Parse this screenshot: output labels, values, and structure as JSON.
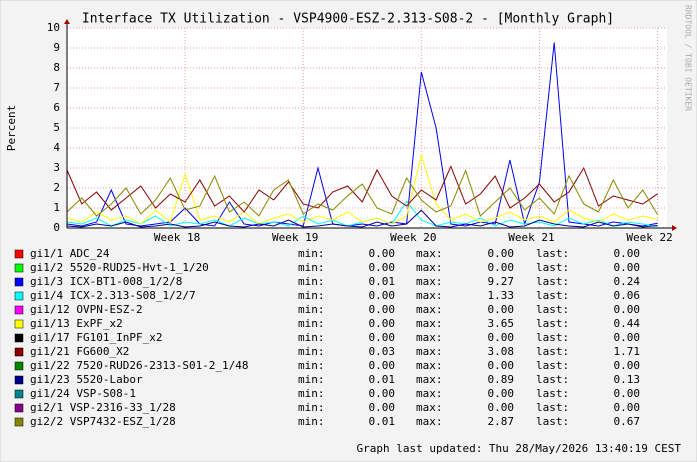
{
  "chart_data": {
    "type": "line",
    "title": "Interface TX Utilization - VSP4900-ESZ-2.313-S08-2 - [Monthly Graph]",
    "y_label": "Percent",
    "watermark": "RRDTOOL / TOBI OETIKER",
    "footer": "Graph last updated: Thu 28/May/2026 13:40:19 CEST",
    "stat_labels": [
      "min:",
      "max:",
      "last:"
    ],
    "xlim": [
      17,
      22.08
    ],
    "xticks": [
      {
        "value": 18,
        "label": "Week 18"
      },
      {
        "value": 19,
        "label": "Week 19"
      },
      {
        "value": 20,
        "label": "Week 20"
      },
      {
        "value": 21,
        "label": "Week 21"
      },
      {
        "value": 22,
        "label": "Week 22"
      }
    ],
    "ylim": [
      0,
      10
    ],
    "yticks": [
      0,
      1,
      2,
      3,
      4,
      5,
      6,
      7,
      8,
      9,
      10
    ],
    "grid": true,
    "x": [
      17,
      17.125,
      17.25,
      17.375,
      17.5,
      17.625,
      17.75,
      17.875,
      18,
      18.125,
      18.25,
      18.375,
      18.5,
      18.625,
      18.75,
      18.875,
      19,
      19.125,
      19.25,
      19.375,
      19.5,
      19.625,
      19.75,
      19.875,
      20,
      20.125,
      20.25,
      20.375,
      20.5,
      20.625,
      20.75,
      20.875,
      21,
      21.125,
      21.25,
      21.375,
      21.5,
      21.625,
      21.75,
      21.875,
      22
    ],
    "series": [
      {
        "name": "gi1/1 ADC_24",
        "color": "#ff0000",
        "stats": [
          "0.00",
          "0.00",
          "0.00"
        ],
        "values": [
          0,
          0,
          0,
          0,
          0,
          0,
          0,
          0,
          0,
          0,
          0,
          0,
          0,
          0,
          0,
          0,
          0,
          0,
          0,
          0,
          0,
          0,
          0,
          0,
          0,
          0,
          0,
          0,
          0,
          0,
          0,
          0,
          0,
          0,
          0,
          0,
          0,
          0,
          0,
          0,
          0
        ]
      },
      {
        "name": "gi1/2 5520-RUD25-Hvt-1_1/20",
        "color": "#00ff00",
        "stats": [
          "0.00",
          "0.00",
          "0.00"
        ],
        "values": [
          0,
          0,
          0,
          0,
          0,
          0,
          0,
          0,
          0,
          0,
          0,
          0,
          0,
          0,
          0,
          0,
          0,
          0,
          0,
          0,
          0,
          0,
          0,
          0,
          0,
          0,
          0,
          0,
          0,
          0,
          0,
          0,
          0,
          0,
          0,
          0,
          0,
          0,
          0,
          0,
          0
        ]
      },
      {
        "name": "gi1/3 ICX-BT1-008_1/2/8",
        "color": "#0000ff",
        "stats": [
          "0.01",
          "9.27",
          "0.24"
        ],
        "values": [
          0.2,
          0.1,
          0.3,
          1.9,
          0.2,
          0.1,
          0.2,
          0.3,
          1.0,
          0.2,
          0.1,
          1.3,
          0.2,
          0.1,
          0.3,
          0.2,
          0.1,
          3.0,
          0.2,
          0.1,
          0.2,
          0.1,
          0.3,
          0.2,
          7.8,
          5.0,
          0.2,
          0.1,
          0.3,
          0.2,
          3.4,
          0.2,
          2.3,
          9.27,
          0.3,
          0.2,
          0.1,
          0.3,
          0.2,
          0.1,
          0.24
        ]
      },
      {
        "name": "gi1/4 ICX-2.313-S08_1/2/7",
        "color": "#00ffff",
        "stats": [
          "0.00",
          "1.33",
          "0.06"
        ],
        "values": [
          0.3,
          0.2,
          0.5,
          0.1,
          0.4,
          0.2,
          0.6,
          0.1,
          0.3,
          0.2,
          0.4,
          0.1,
          0.5,
          0.2,
          0.3,
          0.1,
          0.6,
          0.2,
          0.4,
          0.1,
          0.3,
          0.5,
          0.2,
          1.33,
          0.4,
          0.1,
          0.3,
          0.2,
          0.5,
          0.1,
          0.4,
          0.2,
          0.3,
          0.1,
          0.5,
          0.2,
          0.4,
          0.1,
          0.3,
          0.2,
          0.06
        ]
      },
      {
        "name": "gi1/12 OVPN-ESZ-2",
        "color": "#ff00ff",
        "stats": [
          "0.00",
          "0.00",
          "0.00"
        ],
        "values": [
          0,
          0,
          0,
          0,
          0,
          0,
          0,
          0,
          0,
          0,
          0,
          0,
          0,
          0,
          0,
          0,
          0,
          0,
          0,
          0,
          0,
          0,
          0,
          0,
          0,
          0,
          0,
          0,
          0,
          0,
          0,
          0,
          0,
          0,
          0,
          0,
          0,
          0,
          0,
          0,
          0
        ]
      },
      {
        "name": "gi1/13 ExPF_x2",
        "color": "#ffff00",
        "stats": [
          "0.00",
          "3.65",
          "0.44"
        ],
        "values": [
          0.5,
          0.3,
          0.8,
          0.4,
          0.6,
          0.2,
          0.9,
          0.3,
          2.7,
          0.4,
          0.6,
          0.3,
          0.8,
          0.2,
          0.5,
          0.7,
          0.3,
          0.6,
          0.4,
          0.8,
          0.3,
          0.5,
          0.2,
          0.6,
          3.65,
          1.2,
          0.4,
          0.7,
          0.3,
          0.5,
          0.8,
          0.4,
          0.6,
          0.3,
          0.9,
          0.5,
          0.3,
          0.7,
          0.4,
          0.6,
          0.44
        ]
      },
      {
        "name": "gi1/17 FG101_InPF_x2",
        "color": "#000000",
        "stats": [
          "0.00",
          "0.00",
          "0.00"
        ],
        "values": [
          0,
          0,
          0,
          0,
          0,
          0,
          0,
          0,
          0,
          0,
          0,
          0,
          0,
          0,
          0,
          0,
          0,
          0,
          0,
          0,
          0,
          0,
          0,
          0,
          0,
          0,
          0,
          0,
          0,
          0,
          0,
          0,
          0,
          0,
          0,
          0,
          0,
          0,
          0,
          0,
          0
        ]
      },
      {
        "name": "gi1/21 FG600_X2",
        "color": "#880000",
        "stats": [
          "0.03",
          "3.08",
          "1.71"
        ],
        "values": [
          2.9,
          1.2,
          1.8,
          0.9,
          1.5,
          2.1,
          1.0,
          1.7,
          1.3,
          2.4,
          1.1,
          1.6,
          0.8,
          1.9,
          1.4,
          2.3,
          1.2,
          1.0,
          1.8,
          2.1,
          1.3,
          2.9,
          1.6,
          1.1,
          1.9,
          1.4,
          3.08,
          1.2,
          1.7,
          2.6,
          1.0,
          1.5,
          2.2,
          1.3,
          1.8,
          3.0,
          1.1,
          1.6,
          1.4,
          1.2,
          1.71
        ]
      },
      {
        "name": "gi1/22 7520-RUD26-2313-S01-2_1/48",
        "color": "#008800",
        "stats": [
          "0.00",
          "0.00",
          "0.00"
        ],
        "values": [
          0,
          0,
          0,
          0,
          0,
          0,
          0,
          0,
          0,
          0,
          0,
          0,
          0,
          0,
          0,
          0,
          0,
          0,
          0,
          0,
          0,
          0,
          0,
          0,
          0,
          0,
          0,
          0,
          0,
          0,
          0,
          0,
          0,
          0,
          0,
          0,
          0,
          0,
          0,
          0,
          0
        ]
      },
      {
        "name": "gi1/23 5520-Labor",
        "color": "#000088",
        "stats": [
          "0.01",
          "0.89",
          "0.13"
        ],
        "values": [
          0.1,
          0.05,
          0.2,
          0.1,
          0.3,
          0.05,
          0.1,
          0.2,
          0.05,
          0.1,
          0.3,
          0.1,
          0.05,
          0.2,
          0.1,
          0.4,
          0.05,
          0.1,
          0.2,
          0.1,
          0.05,
          0.3,
          0.1,
          0.2,
          0.89,
          0.1,
          0.05,
          0.2,
          0.1,
          0.3,
          0.05,
          0.1,
          0.4,
          0.2,
          0.1,
          0.05,
          0.3,
          0.1,
          0.2,
          0.05,
          0.13
        ]
      },
      {
        "name": "gi1/24 VSP-S08-1",
        "color": "#008888",
        "stats": [
          "0.00",
          "0.00",
          "0.00"
        ],
        "values": [
          0,
          0,
          0,
          0,
          0,
          0,
          0,
          0,
          0,
          0,
          0,
          0,
          0,
          0,
          0,
          0,
          0,
          0,
          0,
          0,
          0,
          0,
          0,
          0,
          0,
          0,
          0,
          0,
          0,
          0,
          0,
          0,
          0,
          0,
          0,
          0,
          0,
          0,
          0,
          0,
          0
        ]
      },
      {
        "name": "gi2/1 VSP-2316-33_1/28",
        "color": "#880088",
        "stats": [
          "0.00",
          "0.00",
          "0.00"
        ],
        "values": [
          0,
          0,
          0,
          0,
          0,
          0,
          0,
          0,
          0,
          0,
          0,
          0,
          0,
          0,
          0,
          0,
          0,
          0,
          0,
          0,
          0,
          0,
          0,
          0,
          0,
          0,
          0,
          0,
          0,
          0,
          0,
          0,
          0,
          0,
          0,
          0,
          0,
          0,
          0,
          0,
          0
        ]
      },
      {
        "name": "gi2/2 VSP7432-ESZ_1/28",
        "color": "#888800",
        "stats": [
          "0.01",
          "2.87",
          "0.67"
        ],
        "values": [
          0.8,
          1.5,
          0.6,
          1.2,
          2.0,
          0.7,
          1.4,
          2.5,
          0.9,
          1.1,
          2.6,
          0.8,
          1.3,
          0.6,
          1.9,
          2.4,
          0.7,
          1.2,
          0.9,
          1.6,
          2.2,
          1.0,
          0.7,
          2.5,
          1.4,
          0.8,
          1.1,
          2.87,
          0.6,
          1.3,
          2.0,
          0.9,
          1.5,
          0.7,
          2.6,
          1.2,
          0.8,
          2.4,
          1.0,
          1.9,
          0.67
        ]
      }
    ]
  }
}
